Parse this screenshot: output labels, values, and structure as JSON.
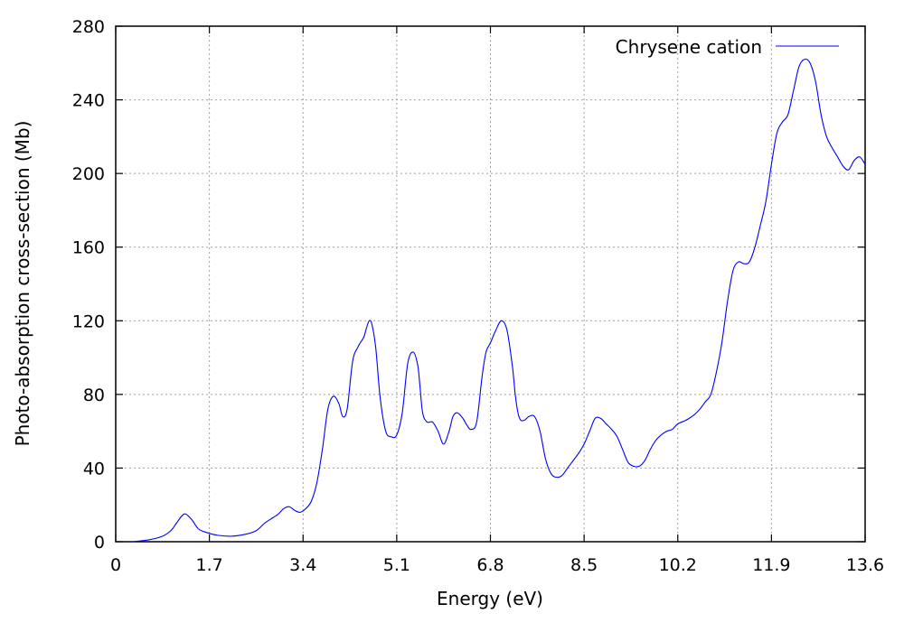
{
  "chart_data": {
    "type": "line",
    "title": "",
    "xlabel": "Energy (eV)",
    "ylabel": "Photo-absorption cross-section (Mb)",
    "xlim": [
      0,
      13.6
    ],
    "ylim": [
      0,
      280
    ],
    "xticks": [
      "0",
      "1.7",
      "3.4",
      "5.1",
      "6.8",
      "8.5",
      "10.2",
      "11.9",
      "13.6"
    ],
    "yticks": [
      "0",
      "40",
      "80",
      "120",
      "160",
      "200",
      "240",
      "280"
    ],
    "grid": true,
    "legend_position": "top-right",
    "series": [
      {
        "name": "Chrysene cation",
        "color": "#0000ff",
        "x": [
          0.3,
          0.6,
          0.85,
          1.0,
          1.1,
          1.2,
          1.27,
          1.38,
          1.5,
          1.65,
          1.85,
          2.1,
          2.35,
          2.55,
          2.7,
          2.85,
          2.95,
          3.05,
          3.15,
          3.25,
          3.35,
          3.45,
          3.55,
          3.65,
          3.75,
          3.85,
          3.95,
          4.05,
          4.12,
          4.2,
          4.3,
          4.4,
          4.5,
          4.55,
          4.6,
          4.65,
          4.72,
          4.8,
          4.9,
          5.0,
          5.1,
          5.2,
          5.3,
          5.4,
          5.48,
          5.52,
          5.57,
          5.65,
          5.75,
          5.85,
          5.95,
          6.05,
          6.12,
          6.2,
          6.3,
          6.38,
          6.45,
          6.55,
          6.65,
          6.72,
          6.8,
          6.9,
          7.0,
          7.1,
          7.2,
          7.25,
          7.3,
          7.35,
          7.42,
          7.5,
          7.6,
          7.7,
          7.8,
          7.9,
          8.0,
          8.1,
          8.2,
          8.3,
          8.4,
          8.5,
          8.6,
          8.7,
          8.8,
          8.9,
          9.0,
          9.1,
          9.2,
          9.3,
          9.4,
          9.5,
          9.6,
          9.7,
          9.8,
          9.9,
          10.0,
          10.1,
          10.2,
          10.35,
          10.5,
          10.6,
          10.7,
          10.8,
          10.9,
          11.0,
          11.1,
          11.2,
          11.3,
          11.4,
          11.5,
          11.6,
          11.7,
          11.8,
          11.9,
          12.0,
          12.1,
          12.2,
          12.3,
          12.4,
          12.5,
          12.6,
          12.7,
          12.8,
          12.9,
          13.0,
          13.1,
          13.2,
          13.3,
          13.4,
          13.5,
          13.6
        ],
        "y": [
          0,
          1,
          3,
          6,
          10,
          14,
          15,
          12,
          7,
          5,
          3.5,
          3,
          4,
          6,
          10,
          13,
          15,
          18,
          19,
          17,
          16,
          18,
          22,
          32,
          50,
          72,
          79,
          75,
          68,
          72,
          98,
          106,
          111,
          116,
          120,
          118,
          105,
          78,
          60,
          57,
          58,
          70,
          97,
          103,
          96,
          85,
          70,
          65,
          65,
          60,
          53,
          60,
          68,
          70,
          67,
          63,
          61,
          65,
          90,
          103,
          108,
          115,
          120,
          115,
          95,
          80,
          70,
          66,
          66,
          68,
          68,
          60,
          45,
          37,
          35,
          36,
          40,
          44,
          48,
          53,
          60,
          67,
          67,
          64,
          61,
          57,
          50,
          43,
          41,
          41,
          44,
          50,
          55,
          58,
          60,
          61,
          64,
          66,
          69,
          72,
          76,
          80,
          92,
          108,
          130,
          147,
          152,
          151,
          152,
          160,
          172,
          185,
          205,
          222,
          228,
          232,
          245,
          258,
          262,
          260,
          250,
          232,
          220,
          214,
          209,
          204,
          202,
          207,
          209,
          205
        ]
      }
    ]
  }
}
